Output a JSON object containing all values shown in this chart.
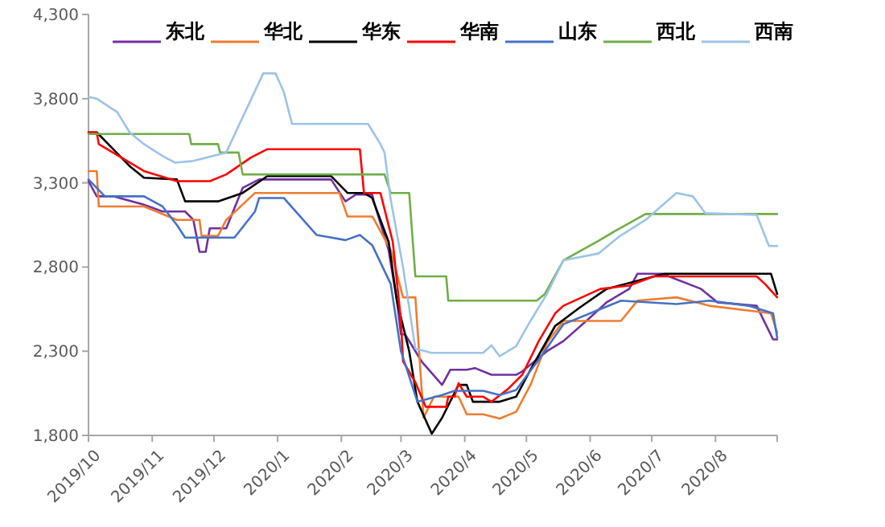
{
  "chart_data": {
    "type": "line",
    "xlim": [
      "2019-10-01",
      "2020-08-31"
    ],
    "xticks": [
      {
        "value": "2019-10-01",
        "label": "2019/10"
      },
      {
        "value": "2019-11-01",
        "label": "2019/11"
      },
      {
        "value": "2019-12-01",
        "label": "2019/12"
      },
      {
        "value": "2020-01-01",
        "label": "2020/1"
      },
      {
        "value": "2020-02-01",
        "label": "2020/2"
      },
      {
        "value": "2020-03-01",
        "label": "2020/3"
      },
      {
        "value": "2020-04-01",
        "label": "2020/4"
      },
      {
        "value": "2020-05-01",
        "label": "2020/5"
      },
      {
        "value": "2020-06-01",
        "label": "2020/6"
      },
      {
        "value": "2020-07-01",
        "label": "2020/7"
      },
      {
        "value": "2020-08-01",
        "label": "2020/8"
      }
    ],
    "ylim": [
      1800,
      4300
    ],
    "yticks": [
      {
        "value": 1800,
        "label": "1,800"
      },
      {
        "value": 2300,
        "label": "2,300"
      },
      {
        "value": 2800,
        "label": "2,800"
      },
      {
        "value": 3300,
        "label": "3,300"
      },
      {
        "value": 3800,
        "label": "3,800"
      },
      {
        "value": 4300,
        "label": "4,300"
      }
    ],
    "grid": false,
    "legend": "top",
    "marker": "none",
    "line_style": "solid",
    "series": [
      {
        "name": "东北",
        "color": "#7030a0",
        "x": [
          "2019-10-01",
          "2019-10-05",
          "2019-10-13",
          "2019-10-28",
          "2019-11-06",
          "2019-11-17",
          "2019-11-21",
          "2019-11-24",
          "2019-11-27",
          "2019-11-29",
          "2019-12-07",
          "2019-12-15",
          "2019-12-23",
          "2020-01-27",
          "2020-02-03",
          "2020-02-08",
          "2020-02-16",
          "2020-02-17",
          "2020-02-24",
          "2020-02-28",
          "2020-03-01",
          "2020-03-03",
          "2020-03-11",
          "2020-03-21",
          "2020-03-25",
          "2020-04-02",
          "2020-04-06",
          "2020-04-14",
          "2020-04-26",
          "2020-04-29",
          "2020-05-11",
          "2020-05-19",
          "2020-06-01",
          "2020-06-09",
          "2020-06-20",
          "2020-06-24",
          "2020-07-06",
          "2020-07-25",
          "2020-08-02",
          "2020-08-21",
          "2020-08-29",
          "2020-08-31"
        ],
        "values": [
          3310,
          3220,
          3220,
          3170,
          3130,
          3130,
          3080,
          2890,
          2890,
          3030,
          3030,
          3270,
          3320,
          3320,
          3190,
          3230,
          3230,
          3180,
          2900,
          2600,
          2400,
          2400,
          2240,
          2100,
          2190,
          2190,
          2200,
          2160,
          2160,
          2180,
          2300,
          2360,
          2500,
          2590,
          2670,
          2760,
          2760,
          2670,
          2590,
          2570,
          2370,
          2370
        ]
      },
      {
        "name": "华北",
        "color": "#ed7d31",
        "x": [
          "2019-10-01",
          "2019-10-05",
          "2019-10-06",
          "2019-10-28",
          "2019-11-13",
          "2019-11-24",
          "2019-11-25",
          "2019-12-03",
          "2019-12-07",
          "2019-12-21",
          "2020-01-31",
          "2020-02-04",
          "2020-02-16",
          "2020-02-17",
          "2020-02-25",
          "2020-03-02",
          "2020-03-08",
          "2020-03-12",
          "2020-03-17",
          "2020-03-29",
          "2020-04-02",
          "2020-04-10",
          "2020-04-18",
          "2020-04-26",
          "2020-05-03",
          "2020-05-11",
          "2020-05-19",
          "2020-06-16",
          "2020-06-24",
          "2020-07-13",
          "2020-07-29",
          "2020-08-28",
          "2020-08-31"
        ],
        "values": [
          3370,
          3370,
          3160,
          3160,
          3080,
          3080,
          2985,
          2985,
          3080,
          3240,
          3240,
          3100,
          3100,
          3080,
          2900,
          2620,
          2620,
          1905,
          2030,
          2030,
          1925,
          1925,
          1900,
          1940,
          2100,
          2350,
          2480,
          2480,
          2600,
          2620,
          2570,
          2525,
          2410
        ]
      },
      {
        "name": "华东",
        "color": "#000000",
        "x": [
          "2019-10-01",
          "2019-10-05",
          "2019-10-13",
          "2019-10-21",
          "2019-10-28",
          "2019-11-13",
          "2019-11-17",
          "2019-12-03",
          "2019-12-15",
          "2019-12-27",
          "2020-01-27",
          "2020-02-04",
          "2020-02-12",
          "2020-02-16",
          "2020-02-24",
          "2020-02-28",
          "2020-03-05",
          "2020-03-09",
          "2020-03-16",
          "2020-03-21",
          "2020-03-29",
          "2020-04-02",
          "2020-04-05",
          "2020-04-18",
          "2020-04-26",
          "2020-05-03",
          "2020-05-15",
          "2020-05-27",
          "2020-06-09",
          "2020-07-07",
          "2020-08-28",
          "2020-08-31"
        ],
        "values": [
          3600,
          3600,
          3500,
          3400,
          3330,
          3320,
          3190,
          3190,
          3240,
          3340,
          3340,
          3240,
          3240,
          3210,
          2950,
          2600,
          2300,
          2000,
          1810,
          1905,
          2100,
          2100,
          2000,
          2000,
          2030,
          2190,
          2450,
          2560,
          2670,
          2760,
          2760,
          2640
        ]
      },
      {
        "name": "华南",
        "color": "#ff0000",
        "x": [
          "2019-10-01",
          "2019-10-05",
          "2019-10-06",
          "2019-10-17",
          "2019-10-28",
          "2019-11-13",
          "2019-11-29",
          "2019-12-07",
          "2019-12-19",
          "2019-12-27",
          "2020-02-10",
          "2020-02-12",
          "2020-02-20",
          "2020-02-26",
          "2020-03-01",
          "2020-03-02",
          "2020-03-08",
          "2020-03-13",
          "2020-03-23",
          "2020-03-24",
          "2020-03-27",
          "2020-03-29",
          "2020-04-02",
          "2020-04-10",
          "2020-04-14",
          "2020-04-22",
          "2020-04-29",
          "2020-05-07",
          "2020-05-15",
          "2020-05-19",
          "2020-06-06",
          "2020-06-20",
          "2020-07-02",
          "2020-08-21",
          "2020-08-25",
          "2020-08-31"
        ],
        "values": [
          3600,
          3600,
          3530,
          3450,
          3370,
          3310,
          3310,
          3350,
          3450,
          3500,
          3500,
          3240,
          3240,
          2950,
          2480,
          2240,
          2115,
          1970,
          1970,
          2030,
          2030,
          2110,
          2030,
          2030,
          2000,
          2075,
          2160,
          2360,
          2525,
          2570,
          2670,
          2690,
          2745,
          2745,
          2700,
          2620
        ]
      },
      {
        "name": "山东",
        "color": "#4472c4",
        "x": [
          "2019-10-01",
          "2019-10-09",
          "2019-10-28",
          "2019-11-06",
          "2019-11-13",
          "2019-11-17",
          "2019-12-11",
          "2019-12-21",
          "2019-12-23",
          "2020-01-04",
          "2020-01-20",
          "2020-01-25",
          "2020-02-03",
          "2020-02-10",
          "2020-02-16",
          "2020-02-25",
          "2020-03-01",
          "2020-03-09",
          "2020-03-21",
          "2020-03-27",
          "2020-04-10",
          "2020-04-18",
          "2020-04-26",
          "2020-05-07",
          "2020-05-19",
          "2020-06-16",
          "2020-07-13",
          "2020-07-29",
          "2020-08-17",
          "2020-08-29",
          "2020-08-31"
        ],
        "values": [
          3320,
          3220,
          3220,
          3160,
          3050,
          2975,
          2975,
          3130,
          3210,
          3210,
          2990,
          2980,
          2960,
          2990,
          2930,
          2700,
          2300,
          2000,
          2040,
          2065,
          2065,
          2040,
          2070,
          2250,
          2460,
          2600,
          2580,
          2600,
          2570,
          2525,
          2380
        ]
      },
      {
        "name": "西北",
        "color": "#70ad47",
        "x": [
          "2019-10-01",
          "2019-11-19",
          "2019-11-20",
          "2019-12-03",
          "2019-12-04",
          "2019-12-13",
          "2019-12-15",
          "2020-02-22",
          "2020-02-25",
          "2020-03-05",
          "2020-03-08",
          "2020-03-23",
          "2020-03-24",
          "2020-05-06",
          "2020-05-10",
          "2020-05-19",
          "2020-06-05",
          "2020-06-14",
          "2020-06-28",
          "2020-08-31"
        ],
        "values": [
          3590,
          3590,
          3530,
          3530,
          3480,
          3480,
          3350,
          3350,
          3240,
          3240,
          2745,
          2745,
          2600,
          2600,
          2640,
          2840,
          2955,
          3020,
          3115,
          3115
        ]
      },
      {
        "name": "西南",
        "color": "#9dc3e6",
        "x": [
          "2019-10-01",
          "2019-10-05",
          "2019-10-15",
          "2019-10-21",
          "2019-10-28",
          "2019-11-06",
          "2019-11-12",
          "2019-11-21",
          "2019-12-07",
          "2019-12-15",
          "2019-12-25",
          "2019-12-31",
          "2020-01-04",
          "2020-01-08",
          "2020-02-14",
          "2020-02-20",
          "2020-02-22",
          "2020-02-25",
          "2020-03-02",
          "2020-03-08",
          "2020-03-16",
          "2020-04-10",
          "2020-04-14",
          "2020-04-18",
          "2020-04-26",
          "2020-05-03",
          "2020-05-11",
          "2020-05-19",
          "2020-06-05",
          "2020-06-15",
          "2020-06-28",
          "2020-07-13",
          "2020-07-21",
          "2020-07-27",
          "2020-08-21",
          "2020-08-27",
          "2020-08-31"
        ],
        "values": [
          3810,
          3800,
          3720,
          3600,
          3530,
          3460,
          3420,
          3430,
          3480,
          3690,
          3950,
          3950,
          3840,
          3650,
          3650,
          3530,
          3480,
          3200,
          2800,
          2315,
          2290,
          2290,
          2335,
          2270,
          2330,
          2480,
          2640,
          2840,
          2880,
          2980,
          3080,
          3240,
          3220,
          3120,
          3110,
          2925,
          2925
        ]
      }
    ]
  }
}
